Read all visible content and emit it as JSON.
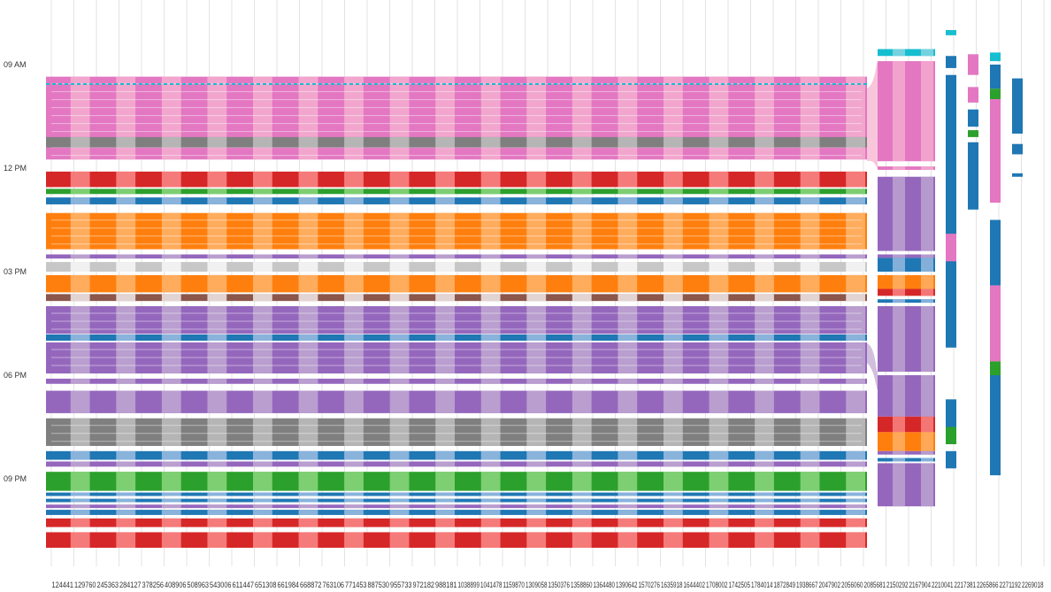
{
  "chart_data": {
    "type": "timeline",
    "title": "",
    "xlabel": "",
    "ylabel": "",
    "y_ticks": [
      "09 AM",
      "12 PM",
      "03 PM",
      "06 PM",
      "09 PM"
    ],
    "x_labels": [
      "124441",
      "129760",
      "245363",
      "284127",
      "378256",
      "408906",
      "508963",
      "543006",
      "611447",
      "651308",
      "661984",
      "668872",
      "763106",
      "771453",
      "887530",
      "955733",
      "972182",
      "988181",
      "1038899",
      "1041478",
      "1159870",
      "1309058",
      "1350376",
      "1358860",
      "1364480",
      "1390642",
      "1570276",
      "1635918",
      "1644402",
      "1708002",
      "1742505",
      "1784014",
      "1872849",
      "1938667",
      "2047902",
      "2056060",
      "2085681",
      "2150292",
      "2167904",
      "2210041",
      "2217381",
      "2265866",
      "2271192",
      "2269018"
    ],
    "colors": {
      "pink": "#e377c2",
      "pink_light": "#f7b6d2",
      "red": "#d62728",
      "red_light": "#ff9896",
      "green": "#2ca02c",
      "green_light": "#98df8a",
      "blue": "#1f77b4",
      "blue_light": "#aec7e8",
      "orange": "#ff7f0e",
      "orange_light": "#ffbb78",
      "purple": "#9467bd",
      "purple_light": "#c5b0d5",
      "brown": "#8c564b",
      "gray": "#7f7f7f",
      "gray_light": "#c7c7c7",
      "cyan": "#17becf",
      "cyan_light": "#9edae5"
    },
    "bands": [
      {
        "color": "pink",
        "start": 9.35,
        "end": 11.75
      },
      {
        "color": "gray",
        "start": 11.1,
        "end": 11.4
      },
      {
        "color": "red",
        "start": 12.1,
        "end": 12.55
      },
      {
        "color": "green",
        "start": 12.6,
        "end": 12.75
      },
      {
        "color": "blue",
        "start": 12.85,
        "end": 13.05
      },
      {
        "color": "orange",
        "start": 13.3,
        "end": 14.35
      },
      {
        "color": "purple",
        "start": 14.5,
        "end": 14.62
      },
      {
        "color": "gray_light",
        "start": 14.72,
        "end": 15.0
      },
      {
        "color": "orange",
        "start": 15.1,
        "end": 15.6
      },
      {
        "color": "brown",
        "start": 15.65,
        "end": 15.85
      },
      {
        "color": "purple",
        "start": 16.0,
        "end": 16.8
      },
      {
        "color": "blue",
        "start": 16.82,
        "end": 17.0
      },
      {
        "color": "purple",
        "start": 17.05,
        "end": 17.95
      },
      {
        "color": "purple",
        "start": 18.1,
        "end": 18.25
      },
      {
        "color": "purple",
        "start": 18.45,
        "end": 19.1
      },
      {
        "color": "gray",
        "start": 19.25,
        "end": 20.05
      },
      {
        "color": "blue",
        "start": 20.2,
        "end": 20.45
      },
      {
        "color": "purple",
        "start": 20.5,
        "end": 20.65
      },
      {
        "color": "green",
        "start": 20.8,
        "end": 21.35
      },
      {
        "color": "blue",
        "start": 21.4,
        "end": 21.5
      },
      {
        "color": "blue",
        "start": 21.58,
        "end": 21.68
      },
      {
        "color": "purple",
        "start": 21.75,
        "end": 21.85
      },
      {
        "color": "blue",
        "start": 21.9,
        "end": 22.05
      },
      {
        "color": "red",
        "start": 22.15,
        "end": 22.4
      },
      {
        "color": "red",
        "start": 22.55,
        "end": 23.0
      }
    ]
  }
}
